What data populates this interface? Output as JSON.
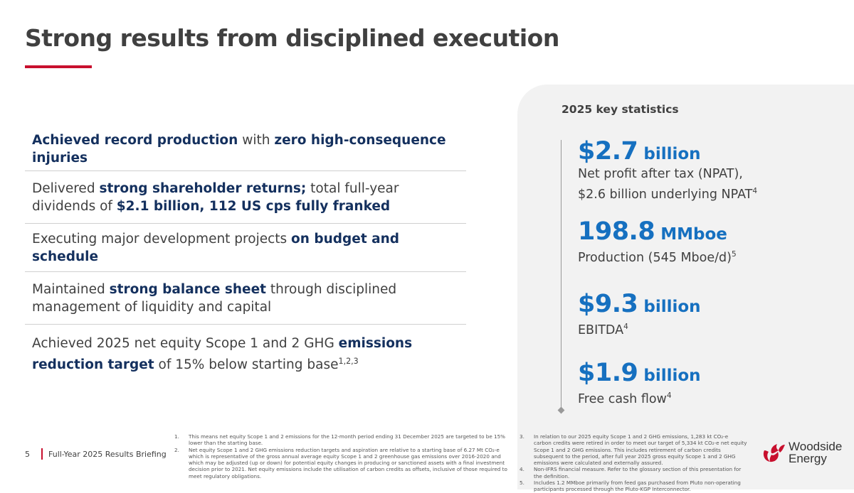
{
  "title": "Strong results from disciplined execution",
  "highlights": [
    {
      "parts": [
        {
          "t": "Achieved record production",
          "b": true
        },
        {
          "t": " with ",
          "b": false
        },
        {
          "t": "zero high-consequence injuries",
          "b": true
        }
      ]
    },
    {
      "parts": [
        {
          "t": "Delivered ",
          "b": false
        },
        {
          "t": "strong shareholder returns;",
          "b": true
        },
        {
          "t": " total full-year dividends of ",
          "b": false
        },
        {
          "t": "$2.1 billion, 112 US cps fully franked",
          "b": true
        }
      ]
    },
    {
      "parts": [
        {
          "t": "Executing major development projects ",
          "b": false
        },
        {
          "t": "on budget and schedule",
          "b": true
        }
      ]
    },
    {
      "parts": [
        {
          "t": "Maintained ",
          "b": false
        },
        {
          "t": "strong balance sheet",
          "b": true
        },
        {
          "t": " through disciplined management of liquidity and capital",
          "b": false
        }
      ]
    },
    {
      "parts": [
        {
          "t": "Achieved 2025 net equity Scope 1 and 2 GHG ",
          "b": false
        },
        {
          "t": "emissions reduction target",
          "b": true
        },
        {
          "t": " of 15% below starting base",
          "b": false
        }
      ],
      "sup": "1,2,3"
    }
  ],
  "key_stats": {
    "heading": "2025 key statistics",
    "items": [
      {
        "value": "$2.7",
        "unit": "billion",
        "desc": "Net profit after tax (NPAT), $2.6 billion underlying NPAT",
        "sup": "4"
      },
      {
        "value": "198.8",
        "unit": "MMboe",
        "desc": "Production (545 Mboe/d)",
        "sup": "5"
      },
      {
        "value": "$9.3",
        "unit": "billion",
        "desc": "EBITDA",
        "sup": "4"
      },
      {
        "value": "$1.9",
        "unit": "billion",
        "desc": "Free cash flow",
        "sup": "4"
      }
    ]
  },
  "footnotes_left": [
    {
      "n": "1.",
      "text": "This means net equity Scope 1 and 2 emissions for the 12-month period ending 31 December 2025 are targeted to be 15% lower than the starting base."
    },
    {
      "n": "2.",
      "text": "Net equity Scope 1 and 2 GHG emissions reduction targets and aspiration are relative to a starting base of 6.27 Mt CO₂-e which is representative of the gross annual average equity Scope 1 and 2 greenhouse gas emissions over 2016-2020 and which may be adjusted (up or down) for potential equity changes in producing or sanctioned assets with a final investment decision prior to 2021. Net equity emissions include the utilisation of carbon credits as offsets, inclusive of those required to meet regulatory obligations."
    }
  ],
  "footnotes_right": [
    {
      "n": "3.",
      "text": "In relation to our 2025 equity Scope 1 and 2 GHG emissions, 1,283 kt CO₂-e carbon credits were retired in order to meet our target of 5,334 kt CO₂-e net equity Scope 1 and 2 GHG emissions. This includes retirement of carbon credits subsequent to the period, after full year 2025 gross equity Scope 1 and 2 GHG emissions were calculated and externally assured."
    },
    {
      "n": "4.",
      "text": "Non-IFRS financial measure. Refer to the glossary section of this presentation for the definition."
    },
    {
      "n": "5.",
      "text": "Includes 1.2 MMboe primarily from feed gas purchased from Pluto non-operating participants processed through the Pluto-KGP Interconnector."
    }
  ],
  "footer": {
    "page": "5",
    "label": "Full-Year 2025 Results Briefing"
  },
  "logo": {
    "line1": "Woodside",
    "line2": "Energy"
  },
  "colors": {
    "accent": "#c8102e",
    "stat_blue": "#1670c0",
    "navy": "#14305e"
  }
}
